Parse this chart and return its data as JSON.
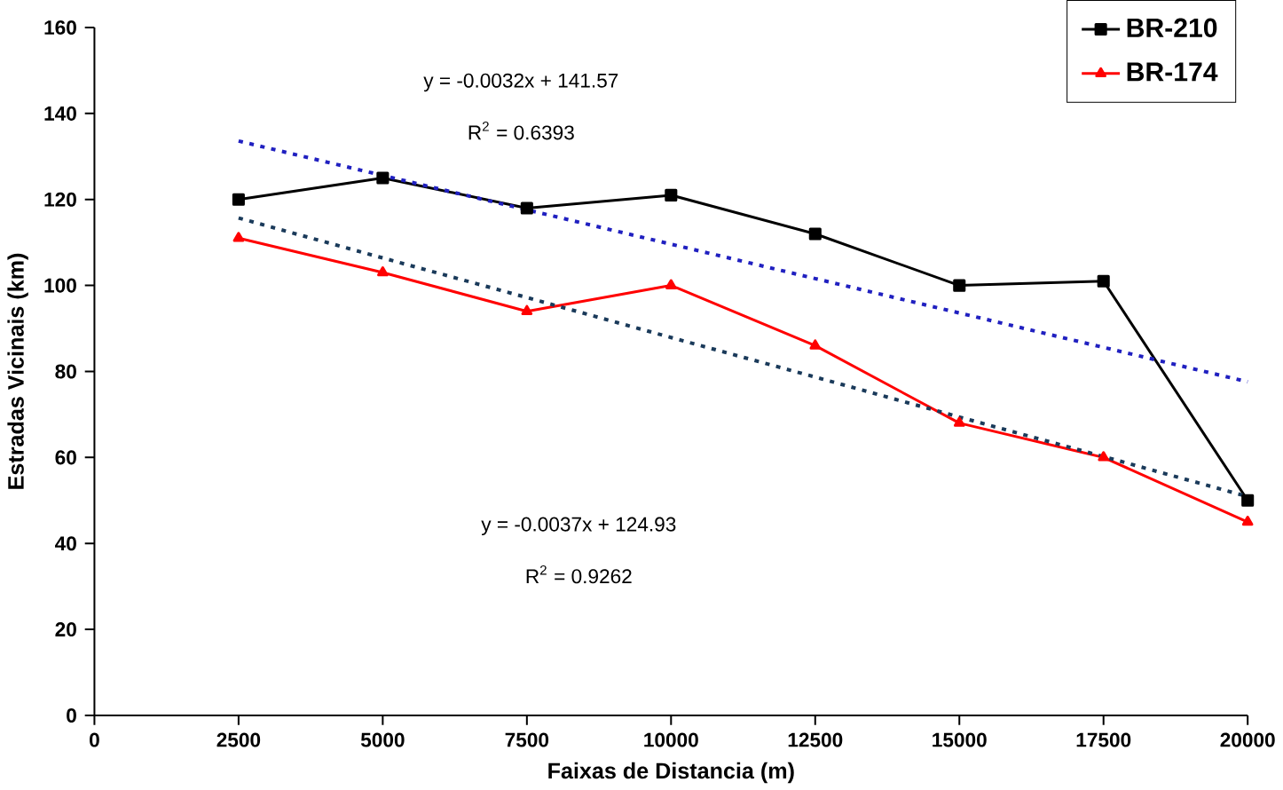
{
  "chart_data": {
    "type": "line",
    "xlabel": "Faixas  de Distancia (m)",
    "ylabel": "Estradas  Vicinais (km)",
    "x": [
      2500,
      5000,
      7500,
      10000,
      12500,
      15000,
      17500,
      20000
    ],
    "series": [
      {
        "name": "BR-210",
        "color": "#000000",
        "marker": "square",
        "values": [
          120,
          125,
          118,
          121,
          112,
          100,
          101,
          50
        ]
      },
      {
        "name": "BR-174",
        "color": "#ff0000",
        "marker": "triangle",
        "values": [
          111,
          103,
          94,
          100,
          86,
          68,
          60,
          45
        ]
      },
      {
        "color": "#2020c0",
        "values": [
          133.6,
          125.6,
          117.6,
          109.6,
          101.6,
          93.6,
          85.6,
          77.6
        ],
        "marker": "none",
        "line_style": "dotted"
      },
      {
        "color": "#1a3a5a",
        "values": [
          115.7,
          106.4,
          97.2,
          87.9,
          78.7,
          69.4,
          60.2,
          50.9
        ],
        "marker": "none",
        "line_style": "dotted"
      }
    ],
    "annotations": [
      "y = -0.0032x + 141.57",
      "R$^{2}$ = 0.6393",
      "y = -0.0037x + 124.93",
      "R$^{2}$ = 0.9262"
    ],
    "xlim": [
      0,
      20000
    ],
    "ylim": [
      0,
      160
    ],
    "xticks": [
      0,
      2500,
      5000,
      7500,
      10000,
      12500,
      15000,
      17500,
      20000
    ],
    "yticks": [
      0,
      20,
      40,
      60,
      80,
      100,
      120,
      140,
      160
    ],
    "grid": false,
    "legend": "top right"
  }
}
